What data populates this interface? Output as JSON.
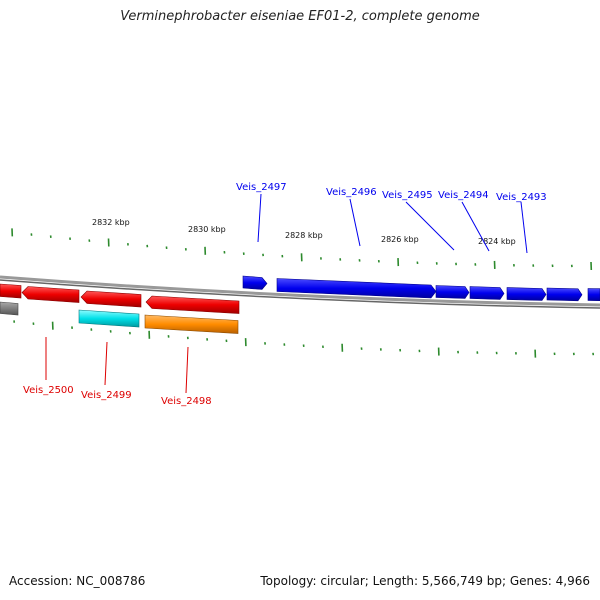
{
  "title": "Verminephrobacter eiseniae EF01-2, complete genome",
  "footer": {
    "accession": "Accession: NC_008786",
    "topology": "Topology: circular; Length: 5,566,749 bp; Genes: 4,966"
  },
  "scale": {
    "tick_labels": [
      "2832 kbp",
      "2830 kbp",
      "2828 kbp",
      "2826 kbp",
      "2824 kbp"
    ]
  },
  "genes_forward": [
    {
      "label": "Veis_2497",
      "color": "#0000ee"
    },
    {
      "label": "Veis_2496",
      "color": "#0000ee"
    },
    {
      "label": "Veis_2495",
      "color": "#0000ee"
    },
    {
      "label": "Veis_2494",
      "color": "#0000ee"
    },
    {
      "label": "Veis_2493",
      "color": "#0000ee"
    }
  ],
  "genes_reverse": [
    {
      "label": "Veis_2500",
      "color": "#ee0000"
    },
    {
      "label": "Veis_2499",
      "color": "#ee0000"
    },
    {
      "label": "Veis_2498",
      "color": "#ee0000"
    }
  ],
  "colors": {
    "forward": "#0000ee",
    "reverse": "#ee0000",
    "cyan": "#00e0e8",
    "orange": "#ff8c00",
    "grey": "#777777",
    "tick": "#2d8a2d",
    "backbone": "#888888"
  }
}
